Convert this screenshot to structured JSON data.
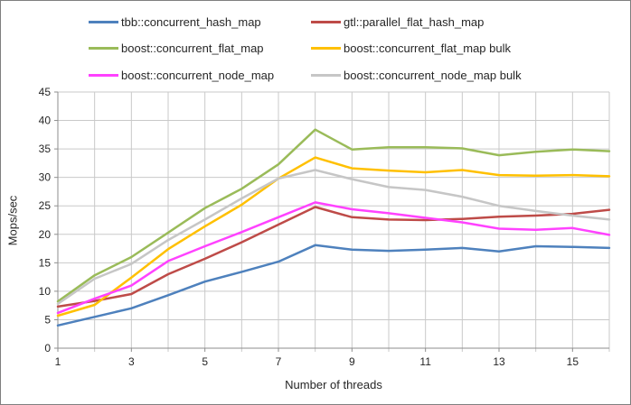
{
  "chart_data": {
    "type": "line",
    "title": "",
    "xlabel": "Number of threads",
    "ylabel": "Mops/sec",
    "x": [
      1,
      2,
      3,
      4,
      5,
      6,
      7,
      8,
      9,
      10,
      11,
      12,
      13,
      14,
      15,
      16
    ],
    "xlim": [
      1,
      16
    ],
    "ylim": [
      0,
      45
    ],
    "ytick_step": 5,
    "ytick_labels": [
      0,
      5,
      10,
      15,
      20,
      25,
      30,
      35,
      40,
      45
    ],
    "xtick_labels": [
      1,
      3,
      5,
      7,
      9,
      11,
      13,
      15
    ],
    "grid": "both",
    "legend_position": "top",
    "series": [
      {
        "name": "tbb::concurrent_hash_map",
        "color": "#4E81BD",
        "values": [
          4.0,
          5.5,
          7.0,
          9.3,
          11.7,
          13.4,
          15.2,
          18.1,
          17.3,
          17.1,
          17.3,
          17.6,
          17.0,
          17.9,
          17.8,
          17.6
        ]
      },
      {
        "name": "gtl::parallel_flat_hash_map",
        "color": "#BE4B48",
        "values": [
          7.3,
          8.3,
          9.5,
          13.0,
          15.7,
          18.6,
          21.7,
          24.8,
          23.0,
          22.6,
          22.5,
          22.7,
          23.1,
          23.3,
          23.6,
          24.3
        ]
      },
      {
        "name": "boost::concurrent_flat_map",
        "color": "#9ABB59",
        "values": [
          8.2,
          12.8,
          16.0,
          20.3,
          24.6,
          28.0,
          32.3,
          38.4,
          34.9,
          35.3,
          35.3,
          35.1,
          33.9,
          34.5,
          34.9,
          34.6
        ]
      },
      {
        "name": "boost::concurrent_flat_map bulk",
        "color": "#FFC000",
        "values": [
          5.7,
          7.6,
          12.4,
          17.4,
          21.4,
          25.2,
          29.8,
          33.5,
          31.6,
          31.2,
          30.9,
          31.3,
          30.4,
          30.3,
          30.4,
          30.2
        ]
      },
      {
        "name": "boost::concurrent_node_map",
        "color": "#FF42FF",
        "values": [
          6.2,
          8.7,
          11.0,
          15.3,
          17.9,
          20.4,
          23.0,
          25.6,
          24.4,
          23.7,
          22.9,
          22.1,
          21.0,
          20.8,
          21.1,
          19.9
        ]
      },
      {
        "name": "boost::concurrent_node_map bulk",
        "color": "#C6C6C6",
        "values": [
          7.8,
          12.2,
          14.8,
          19.0,
          22.6,
          26.3,
          29.8,
          31.3,
          29.7,
          28.3,
          27.8,
          26.6,
          25.0,
          24.1,
          23.3,
          22.6
        ]
      }
    ]
  },
  "colors": {
    "background": "#FFFFFF",
    "frame_border": "#7F7F7F",
    "gridline": "#C9C9C9",
    "axis": "#8E8E8E",
    "text": "#262626"
  }
}
